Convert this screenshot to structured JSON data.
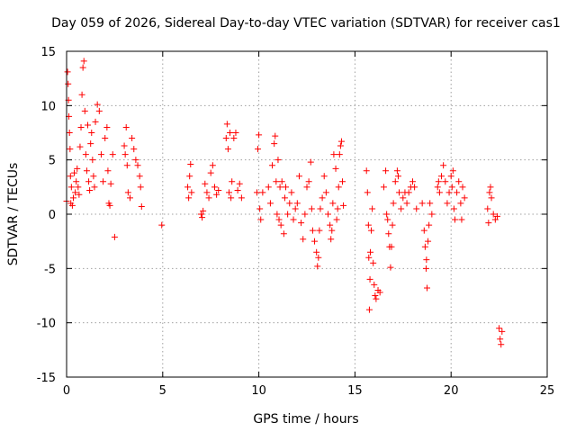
{
  "chart_data": {
    "type": "scatter",
    "title": "Day 059 of 2026, Sidereal Day-to-day VTEC variation (SDTVAR) for receiver cas1",
    "xlabel": "GPS time / hours",
    "ylabel": "SDTVAR / TECUs",
    "xlim": [
      0,
      25
    ],
    "ylim": [
      -15,
      15
    ],
    "xticks": [
      0,
      5,
      10,
      15,
      20,
      25
    ],
    "yticks": [
      -15,
      -10,
      -5,
      0,
      5,
      10,
      15
    ],
    "grid": true,
    "marker": "+",
    "color": "#ff0000",
    "series": [
      {
        "name": "SDTVAR",
        "points": [
          [
            0.0,
            1.2
          ],
          [
            0.05,
            13.1
          ],
          [
            0.08,
            12.0
          ],
          [
            0.1,
            10.5
          ],
          [
            0.12,
            9.0
          ],
          [
            0.15,
            7.5
          ],
          [
            0.18,
            6.0
          ],
          [
            0.2,
            3.5
          ],
          [
            0.22,
            1.0
          ],
          [
            0.25,
            2.5
          ],
          [
            0.3,
            0.8
          ],
          [
            0.35,
            1.5
          ],
          [
            0.4,
            3.8
          ],
          [
            0.45,
            2.0
          ],
          [
            0.5,
            3.0
          ],
          [
            0.55,
            4.2
          ],
          [
            0.6,
            2.5
          ],
          [
            0.65,
            1.8
          ],
          [
            0.7,
            6.2
          ],
          [
            0.75,
            8.0
          ],
          [
            0.8,
            11.0
          ],
          [
            0.85,
            13.5
          ],
          [
            0.9,
            14.1
          ],
          [
            0.95,
            9.5
          ],
          [
            1.0,
            5.5
          ],
          [
            1.05,
            4.0
          ],
          [
            1.1,
            8.2
          ],
          [
            1.15,
            3.0
          ],
          [
            1.2,
            2.2
          ],
          [
            1.25,
            6.5
          ],
          [
            1.3,
            7.5
          ],
          [
            1.35,
            5.0
          ],
          [
            1.4,
            3.5
          ],
          [
            1.45,
            2.5
          ],
          [
            1.5,
            8.5
          ],
          [
            1.6,
            10.1
          ],
          [
            1.7,
            9.5
          ],
          [
            1.8,
            5.5
          ],
          [
            1.9,
            3.0
          ],
          [
            2.0,
            7.0
          ],
          [
            2.1,
            8.0
          ],
          [
            2.15,
            4.0
          ],
          [
            2.2,
            1.0
          ],
          [
            2.25,
            0.8
          ],
          [
            2.3,
            2.8
          ],
          [
            2.4,
            5.5
          ],
          [
            2.5,
            -2.1
          ],
          [
            3.0,
            6.3
          ],
          [
            3.05,
            5.5
          ],
          [
            3.1,
            8.0
          ],
          [
            3.15,
            4.5
          ],
          [
            3.2,
            2.0
          ],
          [
            3.3,
            1.5
          ],
          [
            3.4,
            7.0
          ],
          [
            3.5,
            6.0
          ],
          [
            3.6,
            5.0
          ],
          [
            3.7,
            4.5
          ],
          [
            3.8,
            3.5
          ],
          [
            3.85,
            2.5
          ],
          [
            3.9,
            0.7
          ],
          [
            4.95,
            -1.0
          ],
          [
            6.3,
            2.5
          ],
          [
            6.35,
            1.5
          ],
          [
            6.4,
            3.5
          ],
          [
            6.45,
            4.6
          ],
          [
            6.5,
            2.0
          ],
          [
            7.0,
            0.0
          ],
          [
            7.05,
            -0.3
          ],
          [
            7.1,
            0.3
          ],
          [
            7.2,
            2.8
          ],
          [
            7.3,
            2.0
          ],
          [
            7.4,
            1.5
          ],
          [
            7.5,
            3.8
          ],
          [
            7.6,
            4.5
          ],
          [
            7.7,
            2.5
          ],
          [
            7.8,
            1.8
          ],
          [
            7.9,
            2.2
          ],
          [
            8.3,
            7.0
          ],
          [
            8.35,
            8.3
          ],
          [
            8.4,
            6.0
          ],
          [
            8.45,
            2.0
          ],
          [
            8.5,
            7.5
          ],
          [
            8.55,
            1.5
          ],
          [
            8.6,
            3.0
          ],
          [
            8.7,
            7.0
          ],
          [
            8.8,
            7.5
          ],
          [
            8.9,
            2.2
          ],
          [
            9.0,
            2.8
          ],
          [
            9.1,
            1.5
          ],
          [
            9.9,
            2.0
          ],
          [
            9.95,
            6.0
          ],
          [
            10.0,
            7.3
          ],
          [
            10.05,
            0.5
          ],
          [
            10.1,
            -0.5
          ],
          [
            10.2,
            2.0
          ],
          [
            10.5,
            2.5
          ],
          [
            10.6,
            1.0
          ],
          [
            10.7,
            4.5
          ],
          [
            10.8,
            6.5
          ],
          [
            10.85,
            7.2
          ],
          [
            10.9,
            3.0
          ],
          [
            10.95,
            0.0
          ],
          [
            11.0,
            5.0
          ],
          [
            11.05,
            -0.5
          ],
          [
            11.1,
            2.5
          ],
          [
            11.15,
            -1.0
          ],
          [
            11.2,
            3.0
          ],
          [
            11.3,
            -1.8
          ],
          [
            11.35,
            1.5
          ],
          [
            11.4,
            2.5
          ],
          [
            11.5,
            0.0
          ],
          [
            11.6,
            1.0
          ],
          [
            11.7,
            2.0
          ],
          [
            11.8,
            -0.5
          ],
          [
            11.9,
            0.5
          ],
          [
            12.0,
            1.0
          ],
          [
            12.1,
            3.5
          ],
          [
            12.2,
            -0.8
          ],
          [
            12.3,
            -2.3
          ],
          [
            12.4,
            0.0
          ],
          [
            12.5,
            2.5
          ],
          [
            12.6,
            3.0
          ],
          [
            12.7,
            4.8
          ],
          [
            12.75,
            0.5
          ],
          [
            12.8,
            -1.5
          ],
          [
            12.9,
            -2.5
          ],
          [
            13.0,
            -3.5
          ],
          [
            13.05,
            -4.8
          ],
          [
            13.1,
            -4.0
          ],
          [
            13.15,
            -1.5
          ],
          [
            13.2,
            0.5
          ],
          [
            13.3,
            1.5
          ],
          [
            13.4,
            3.5
          ],
          [
            13.5,
            2.0
          ],
          [
            13.6,
            0.0
          ],
          [
            13.7,
            -1.0
          ],
          [
            13.75,
            -2.3
          ],
          [
            13.8,
            -1.5
          ],
          [
            13.85,
            1.0
          ],
          [
            13.9,
            5.5
          ],
          [
            14.0,
            4.2
          ],
          [
            14.05,
            -0.5
          ],
          [
            14.1,
            0.5
          ],
          [
            14.15,
            2.5
          ],
          [
            14.2,
            5.5
          ],
          [
            14.25,
            6.3
          ],
          [
            14.3,
            6.7
          ],
          [
            14.35,
            3.0
          ],
          [
            14.4,
            0.8
          ],
          [
            15.6,
            4.0
          ],
          [
            15.65,
            2.0
          ],
          [
            15.7,
            -1.0
          ],
          [
            15.72,
            -4.0
          ],
          [
            15.75,
            -8.8
          ],
          [
            15.78,
            -6.0
          ],
          [
            15.8,
            -3.5
          ],
          [
            15.85,
            -1.5
          ],
          [
            15.9,
            0.5
          ],
          [
            15.95,
            -4.5
          ],
          [
            16.0,
            -6.5
          ],
          [
            16.05,
            -7.5
          ],
          [
            16.1,
            -7.8
          ],
          [
            16.2,
            -7.0
          ],
          [
            16.3,
            -7.2
          ],
          [
            16.5,
            2.5
          ],
          [
            16.6,
            4.0
          ],
          [
            16.65,
            0.0
          ],
          [
            16.7,
            -0.5
          ],
          [
            16.75,
            -1.8
          ],
          [
            16.8,
            -3.0
          ],
          [
            16.85,
            -4.9
          ],
          [
            16.9,
            -3.0
          ],
          [
            16.95,
            -1.0
          ],
          [
            17.0,
            1.0
          ],
          [
            17.1,
            3.0
          ],
          [
            17.2,
            4.0
          ],
          [
            17.25,
            3.5
          ],
          [
            17.3,
            2.0
          ],
          [
            17.4,
            0.5
          ],
          [
            17.5,
            1.5
          ],
          [
            17.6,
            2.0
          ],
          [
            17.7,
            1.0
          ],
          [
            17.8,
            2.0
          ],
          [
            17.9,
            2.5
          ],
          [
            18.0,
            3.0
          ],
          [
            18.1,
            2.5
          ],
          [
            18.2,
            0.5
          ],
          [
            18.5,
            1.0
          ],
          [
            18.6,
            -1.5
          ],
          [
            18.65,
            -3.0
          ],
          [
            18.7,
            -5.0
          ],
          [
            18.72,
            -4.2
          ],
          [
            18.75,
            -6.8
          ],
          [
            18.8,
            -2.5
          ],
          [
            18.85,
            -1.0
          ],
          [
            18.9,
            1.0
          ],
          [
            19.0,
            0.0
          ],
          [
            19.3,
            2.5
          ],
          [
            19.35,
            3.0
          ],
          [
            19.4,
            2.0
          ],
          [
            19.5,
            3.5
          ],
          [
            19.6,
            4.5
          ],
          [
            19.7,
            3.0
          ],
          [
            19.8,
            1.0
          ],
          [
            19.9,
            2.0
          ],
          [
            20.0,
            3.5
          ],
          [
            20.05,
            2.5
          ],
          [
            20.1,
            4.0
          ],
          [
            20.15,
            0.5
          ],
          [
            20.2,
            -0.5
          ],
          [
            20.3,
            2.0
          ],
          [
            20.4,
            3.0
          ],
          [
            20.5,
            1.0
          ],
          [
            20.55,
            -0.5
          ],
          [
            20.6,
            2.5
          ],
          [
            20.7,
            1.5
          ],
          [
            21.9,
            0.5
          ],
          [
            21.95,
            -0.8
          ],
          [
            22.0,
            2.0
          ],
          [
            22.05,
            2.5
          ],
          [
            22.1,
            1.5
          ],
          [
            22.2,
            0.0
          ],
          [
            22.3,
            -0.5
          ],
          [
            22.4,
            -0.2
          ],
          [
            22.5,
            -10.5
          ],
          [
            22.55,
            -11.5
          ],
          [
            22.6,
            -12.0
          ],
          [
            22.65,
            -10.8
          ]
        ]
      }
    ]
  }
}
